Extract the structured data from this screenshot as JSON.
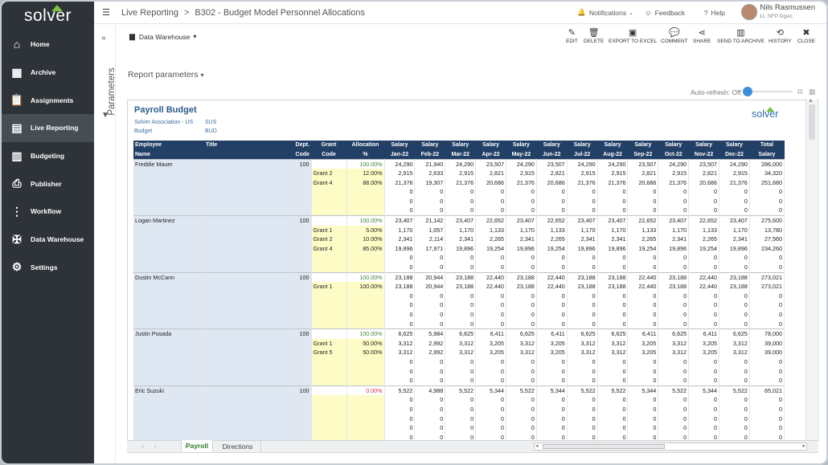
{
  "app": {
    "logo": "solver"
  },
  "nav": [
    {
      "label": "Home",
      "icon": "home-icon",
      "glyph": "⌂"
    },
    {
      "label": "Archive",
      "icon": "archive-icon",
      "glyph": "▦"
    },
    {
      "label": "Assignments",
      "icon": "clipboard-icon",
      "glyph": "📋"
    },
    {
      "label": "Live Reporting",
      "icon": "live-reporting-icon",
      "glyph": "▤"
    },
    {
      "label": "Budgeting",
      "icon": "calculator-icon",
      "glyph": "▥"
    },
    {
      "label": "Publisher",
      "icon": "publisher-icon",
      "glyph": "⎙"
    },
    {
      "label": "Workflow",
      "icon": "workflow-icon",
      "glyph": "⋮"
    },
    {
      "label": "Data Warehouse",
      "icon": "tools-icon",
      "glyph": "✠"
    },
    {
      "label": "Settings",
      "icon": "gear-icon",
      "glyph": "⚙"
    }
  ],
  "nav_active_index": 3,
  "header": {
    "crumb1": "Live Reporting",
    "crumb_sep": ">",
    "crumb2": "B302 - Budget Model Personnel Allocations",
    "notifications": "Notifications",
    "feedback": "Feedback",
    "help": "Help",
    "user_name": "Nils Rasmussen",
    "user_org": "11. NFP Dgwc"
  },
  "rail": {
    "label": "Parameters"
  },
  "toolbar": {
    "data_source": "Data Warehouse",
    "buttons": [
      {
        "label": "EDIT",
        "glyph": "✎",
        "icon": "edit-icon"
      },
      {
        "label": "DELETE",
        "glyph": "🗑",
        "icon": "trash-icon"
      },
      {
        "label": "EXPORT TO EXCEL",
        "glyph": "▣",
        "icon": "excel-icon"
      },
      {
        "label": "COMMENT",
        "glyph": "💬",
        "icon": "comment-icon"
      },
      {
        "label": "SHARE",
        "glyph": "⋖",
        "icon": "share-icon"
      },
      {
        "label": "SEND TO ARCHIVE",
        "glyph": "▥",
        "icon": "archive-send-icon"
      },
      {
        "label": "HISTORY",
        "glyph": "⟲",
        "icon": "history-icon"
      },
      {
        "label": "CLOSE",
        "glyph": "✖",
        "icon": "close-icon"
      }
    ]
  },
  "report_params": "Report parameters",
  "auto_refresh": "Auto-refresh: Off",
  "report": {
    "title": "Payroll Budget",
    "meta": [
      {
        "key": "Solver Association - US",
        "value": "SUS"
      },
      {
        "key": "Budget",
        "value": "BUD"
      }
    ],
    "logo": "solver",
    "headers_row1": [
      "Employee",
      "Title",
      "Dept.",
      "Grant",
      "Allocation",
      "Salary",
      "Salary",
      "Salary",
      "Salary",
      "Salary",
      "Salary",
      "Salary",
      "Salary",
      "Salary",
      "Salary",
      "Salary",
      "Salary",
      "Total"
    ],
    "headers_row2": [
      "Name",
      "",
      "Code",
      "Code",
      "%",
      "Jan-22",
      "Feb-22",
      "Mar-22",
      "Apr-22",
      "May-22",
      "Jun-22",
      "Jul-22",
      "Aug-22",
      "Sep-22",
      "Oct-22",
      "Nov-22",
      "Dec-22",
      "Salary"
    ],
    "employees": [
      {
        "name": "Freddie Mauer",
        "title": "",
        "dept": "100",
        "rows": [
          {
            "grant": "",
            "alloc": "100.00%",
            "alloc_style": "green",
            "values": [
              "24,290",
              "21,940",
              "24,290",
              "23,507",
              "24,290",
              "23,507",
              "24,290",
              "24,290",
              "23,507",
              "24,290",
              "23,507",
              "24,290",
              "286,000"
            ]
          },
          {
            "grant": "Grant 2",
            "alloc": "12.00%",
            "values": [
              "2,915",
              "2,633",
              "2,915",
              "2,821",
              "2,915",
              "2,821",
              "2,915",
              "2,915",
              "2,821",
              "2,915",
              "2,821",
              "2,915",
              "34,320"
            ]
          },
          {
            "grant": "Grant 4",
            "alloc": "88.00%",
            "values": [
              "21,376",
              "19,307",
              "21,376",
              "20,686",
              "21,376",
              "20,686",
              "21,376",
              "21,376",
              "20,686",
              "21,376",
              "20,686",
              "21,376",
              "251,680"
            ]
          },
          {
            "grant": "",
            "alloc": "",
            "values": [
              "0",
              "0",
              "0",
              "0",
              "0",
              "0",
              "0",
              "0",
              "0",
              "0",
              "0",
              "0",
              "0"
            ]
          },
          {
            "grant": "",
            "alloc": "",
            "values": [
              "0",
              "0",
              "0",
              "0",
              "0",
              "0",
              "0",
              "0",
              "0",
              "0",
              "0",
              "0",
              "0"
            ]
          },
          {
            "grant": "",
            "alloc": "",
            "values": [
              "0",
              "0",
              "0",
              "0",
              "0",
              "0",
              "0",
              "0",
              "0",
              "0",
              "0",
              "0",
              "0"
            ]
          }
        ]
      },
      {
        "name": "Logan Martinez",
        "title": "",
        "dept": "100",
        "rows": [
          {
            "grant": "",
            "alloc": "100.00%",
            "alloc_style": "green",
            "values": [
              "23,407",
              "21,142",
              "23,407",
              "22,652",
              "23,407",
              "22,652",
              "23,407",
              "23,407",
              "22,652",
              "23,407",
              "22,652",
              "23,407",
              "275,600"
            ]
          },
          {
            "grant": "Grant 1",
            "alloc": "5.00%",
            "values": [
              "1,170",
              "1,057",
              "1,170",
              "1,133",
              "1,170",
              "1,133",
              "1,170",
              "1,170",
              "1,133",
              "1,170",
              "1,133",
              "1,170",
              "13,780"
            ]
          },
          {
            "grant": "Grant 2",
            "alloc": "10.00%",
            "values": [
              "2,341",
              "2,114",
              "2,341",
              "2,265",
              "2,341",
              "2,265",
              "2,341",
              "2,341",
              "2,265",
              "2,341",
              "2,265",
              "2,341",
              "27,560"
            ]
          },
          {
            "grant": "Grant 4",
            "alloc": "85.00%",
            "values": [
              "19,896",
              "17,971",
              "19,896",
              "19,254",
              "19,896",
              "19,254",
              "19,896",
              "19,896",
              "19,254",
              "19,896",
              "19,254",
              "19,896",
              "234,260"
            ]
          },
          {
            "grant": "",
            "alloc": "",
            "values": [
              "0",
              "0",
              "0",
              "0",
              "0",
              "0",
              "0",
              "0",
              "0",
              "0",
              "0",
              "0",
              "0"
            ]
          },
          {
            "grant": "",
            "alloc": "",
            "values": [
              "0",
              "0",
              "0",
              "0",
              "0",
              "0",
              "0",
              "0",
              "0",
              "0",
              "0",
              "0",
              "0"
            ]
          }
        ]
      },
      {
        "name": "Dustin McCann",
        "title": "",
        "dept": "100",
        "rows": [
          {
            "grant": "",
            "alloc": "100.00%",
            "alloc_style": "green",
            "values": [
              "23,188",
              "20,944",
              "23,188",
              "22,440",
              "23,188",
              "22,440",
              "23,188",
              "23,188",
              "22,440",
              "23,188",
              "22,440",
              "23,188",
              "273,021"
            ]
          },
          {
            "grant": "Grant 1",
            "alloc": "100.00%",
            "values": [
              "23,188",
              "20,944",
              "23,188",
              "22,440",
              "23,188",
              "22,440",
              "23,188",
              "23,188",
              "22,440",
              "23,188",
              "22,440",
              "23,188",
              "273,021"
            ]
          },
          {
            "grant": "",
            "alloc": "",
            "values": [
              "0",
              "0",
              "0",
              "0",
              "0",
              "0",
              "0",
              "0",
              "0",
              "0",
              "0",
              "0",
              "0"
            ]
          },
          {
            "grant": "",
            "alloc": "",
            "values": [
              "0",
              "0",
              "0",
              "0",
              "0",
              "0",
              "0",
              "0",
              "0",
              "0",
              "0",
              "0",
              "0"
            ]
          },
          {
            "grant": "",
            "alloc": "",
            "values": [
              "0",
              "0",
              "0",
              "0",
              "0",
              "0",
              "0",
              "0",
              "0",
              "0",
              "0",
              "0",
              "0"
            ]
          },
          {
            "grant": "",
            "alloc": "",
            "values": [
              "0",
              "0",
              "0",
              "0",
              "0",
              "0",
              "0",
              "0",
              "0",
              "0",
              "0",
              "0",
              "0"
            ]
          }
        ]
      },
      {
        "name": "Justin Posada",
        "title": "",
        "dept": "100",
        "rows": [
          {
            "grant": "",
            "alloc": "100.00%",
            "alloc_style": "green",
            "values": [
              "6,625",
              "5,984",
              "6,625",
              "6,411",
              "6,625",
              "6,411",
              "6,625",
              "6,625",
              "6,411",
              "6,625",
              "6,411",
              "6,625",
              "78,000"
            ]
          },
          {
            "grant": "Grant 1",
            "alloc": "50.00%",
            "values": [
              "3,312",
              "2,992",
              "3,312",
              "3,205",
              "3,312",
              "3,205",
              "3,312",
              "3,312",
              "3,205",
              "3,312",
              "3,205",
              "3,312",
              "39,000"
            ]
          },
          {
            "grant": "Grant 5",
            "alloc": "50.00%",
            "values": [
              "3,312",
              "2,992",
              "3,312",
              "3,205",
              "3,312",
              "3,205",
              "3,312",
              "3,312",
              "3,205",
              "3,312",
              "3,205",
              "3,312",
              "39,000"
            ]
          },
          {
            "grant": "",
            "alloc": "",
            "values": [
              "0",
              "0",
              "0",
              "0",
              "0",
              "0",
              "0",
              "0",
              "0",
              "0",
              "0",
              "0",
              "0"
            ]
          },
          {
            "grant": "",
            "alloc": "",
            "values": [
              "0",
              "0",
              "0",
              "0",
              "0",
              "0",
              "0",
              "0",
              "0",
              "0",
              "0",
              "0",
              "0"
            ]
          },
          {
            "grant": "",
            "alloc": "",
            "values": [
              "0",
              "0",
              "0",
              "0",
              "0",
              "0",
              "0",
              "0",
              "0",
              "0",
              "0",
              "0",
              "0"
            ]
          }
        ]
      },
      {
        "name": "Eric Suzuki",
        "title": "",
        "dept": "100",
        "rows": [
          {
            "grant": "",
            "alloc": "0.00%",
            "alloc_style": "red",
            "values": [
              "5,522",
              "4,988",
              "5,522",
              "5,344",
              "5,522",
              "5,344",
              "5,522",
              "5,522",
              "5,344",
              "5,522",
              "5,344",
              "5,522",
              "65,021"
            ]
          },
          {
            "grant": "",
            "alloc": "",
            "values": [
              "0",
              "0",
              "0",
              "0",
              "0",
              "0",
              "0",
              "0",
              "0",
              "0",
              "0",
              "0",
              "0"
            ]
          },
          {
            "grant": "",
            "alloc": "",
            "values": [
              "0",
              "0",
              "0",
              "0",
              "0",
              "0",
              "0",
              "0",
              "0",
              "0",
              "0",
              "0",
              "0"
            ]
          },
          {
            "grant": "",
            "alloc": "",
            "values": [
              "0",
              "0",
              "0",
              "0",
              "0",
              "0",
              "0",
              "0",
              "0",
              "0",
              "0",
              "0",
              "0"
            ]
          },
          {
            "grant": "",
            "alloc": "",
            "values": [
              "0",
              "0",
              "0",
              "0",
              "0",
              "0",
              "0",
              "0",
              "0",
              "0",
              "0",
              "0",
              "0"
            ]
          },
          {
            "grant": "",
            "alloc": "",
            "values": [
              "0",
              "0",
              "0",
              "0",
              "0",
              "0",
              "0",
              "0",
              "0",
              "0",
              "0",
              "0",
              "0"
            ]
          }
        ]
      }
    ]
  },
  "sheet_tabs": [
    "Payroll",
    "Directions"
  ],
  "colors": {
    "sidebar": "#2d3338",
    "header_blue": "#223f66",
    "employee_fill": "#dfe8f2",
    "input_fill": "#fdfcc6",
    "accent": "#3a8fdc",
    "brand_green": "#7cc243"
  }
}
